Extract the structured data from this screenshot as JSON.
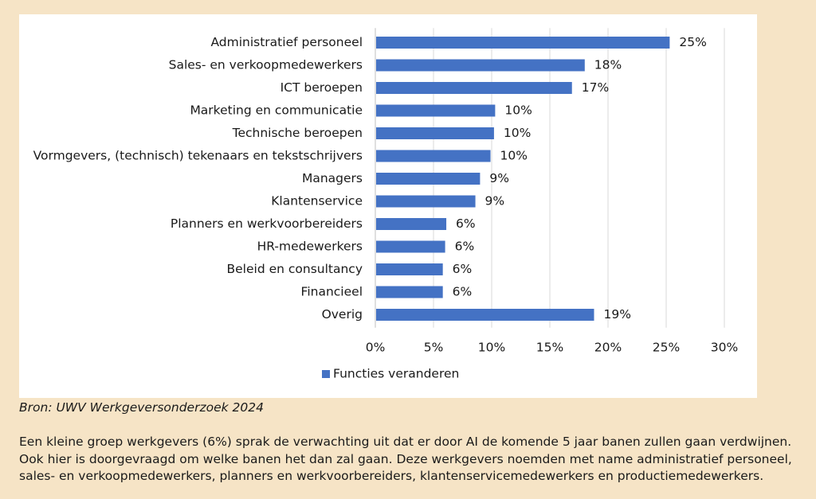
{
  "chart_data": {
    "type": "bar",
    "orientation": "horizontal",
    "categories": [
      "Administratief personeel",
      "Sales- en verkoopmedewerkers",
      "ICT beroepen",
      "Marketing en communicatie",
      "Technische beroepen",
      "Vormgevers, (technisch) tekenaars en tekstschrijvers",
      "Managers",
      "Klantenservice",
      "Planners en werkvoorbereiders",
      "HR-medewerkers",
      "Beleid en consultancy",
      "Financieel",
      "Overig"
    ],
    "series": [
      {
        "name": "Functies veranderen",
        "color": "#4472c4",
        "values": [
          25.3,
          18.0,
          16.9,
          10.3,
          10.2,
          9.9,
          9.0,
          8.6,
          6.1,
          6.0,
          5.8,
          5.8,
          18.8
        ],
        "labels": [
          "25%",
          "18%",
          "17%",
          "10%",
          "10%",
          "10%",
          "9%",
          "9%",
          "6%",
          "6%",
          "6%",
          "6%",
          "19%"
        ]
      }
    ],
    "xlim": [
      0,
      30
    ],
    "xticks": [
      0,
      5,
      10,
      15,
      20,
      25,
      30
    ],
    "xtick_labels": [
      "0%",
      "5%",
      "10%",
      "15%",
      "20%",
      "25%",
      "30%"
    ],
    "grid": "vertical",
    "legend": "bottom-center",
    "title": "",
    "xlabel": "",
    "ylabel": ""
  },
  "source": "Bron: UWV Werkgeversonderzoek 2024",
  "body_lines": [
    "Een kleine groep werkgevers (6%) sprak de verwachting uit dat er door AI de komende 5 jaar banen zullen gaan verdwijnen.",
    "Ook hier is doorgevraagd om welke banen het dan zal gaan. Deze werkgevers noemden met name administratief personeel,",
    "sales- en verkoopmedewerkers, planners en werkvoorbereiders, klantenservicemedewerkers en productiemedewerkers."
  ]
}
